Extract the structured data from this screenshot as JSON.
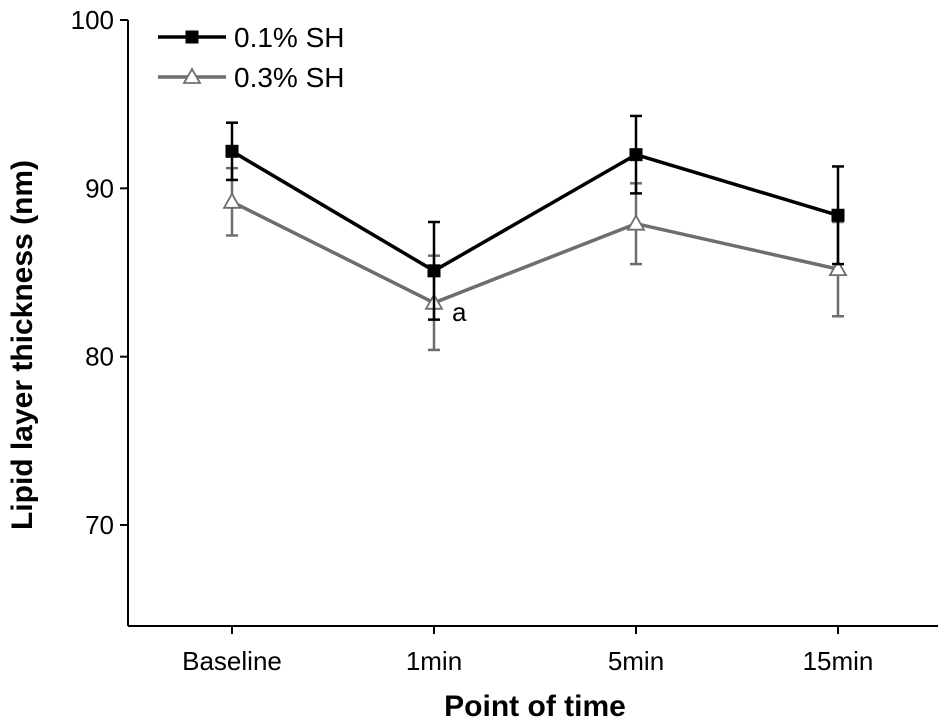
{
  "chart_data": {
    "type": "line",
    "title": "",
    "xlabel": "Point of time",
    "ylabel": "Lipid layer thickness (nm)",
    "categories": [
      "Baseline",
      "1min",
      "5min",
      "15min"
    ],
    "ylim": [
      64,
      100
    ],
    "yticks": [
      70,
      80,
      90,
      100
    ],
    "grid": false,
    "legend": "top-left",
    "series": [
      {
        "name": "0.1% SH",
        "color": "#000000",
        "marker": "square-filled",
        "values": [
          92.2,
          85.1,
          92.0,
          88.4
        ],
        "error": [
          1.7,
          2.9,
          2.3,
          2.9
        ]
      },
      {
        "name": "0.3% SH",
        "color": "#6e6e6e",
        "marker": "triangle-open",
        "values": [
          89.2,
          83.2,
          87.9,
          85.2
        ],
        "error": [
          2.0,
          2.8,
          2.4,
          2.8
        ]
      }
    ],
    "annotations": [
      {
        "text": "a",
        "category": "1min",
        "y": 82.6
      }
    ]
  }
}
